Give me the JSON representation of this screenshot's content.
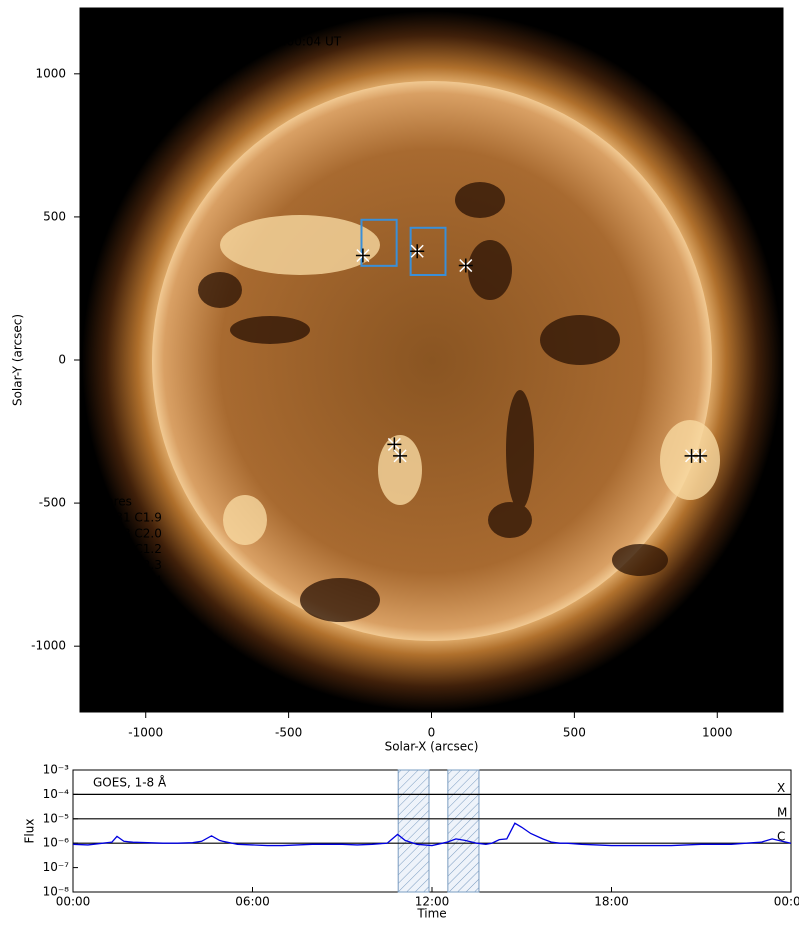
{
  "chart_data": [
    {
      "type": "scatter",
      "title": "AIA 0193, 23-Dec-2022, 12:00:04 UT",
      "xlabel": "Solar-X (arcsec)",
      "ylabel": "Solar-Y (arcsec)",
      "xlim": [
        -1230,
        1230
      ],
      "ylim": [
        -1230,
        1230
      ],
      "xticks": [
        -1000,
        -500,
        0,
        500,
        1000
      ],
      "yticks": [
        -1000,
        -500,
        0,
        500,
        1000
      ],
      "x": [
        -240,
        -50,
        120,
        -130,
        -110,
        910,
        940
      ],
      "y": [
        365,
        380,
        330,
        -295,
        -335,
        -335,
        -335
      ],
      "boxes": [
        {
          "x": [
            -245,
            -122
          ],
          "y": [
            329,
            490
          ]
        },
        {
          "x": [
            -73,
            49
          ],
          "y": [
            297,
            462
          ]
        }
      ],
      "box_color": "#3a8fd8",
      "legend_title": "Flares",
      "flares": [
        "01:31 C1.9",
        "04:38 C2.0",
        "04:58 C1.2",
        "10:51 C2.3",
        "14:15 C1.4",
        "14:46 C6.6",
        "16:17 C1.0",
        "18:56 C1.0",
        "23:22 C1.5"
      ]
    },
    {
      "type": "line",
      "xlabel": "Time",
      "ylabel": "Flux",
      "log_y": true,
      "xlim": [
        0,
        24
      ],
      "ylim": [
        1e-08,
        0.001
      ],
      "xticks": [
        {
          "value": 0,
          "label": "00:00"
        },
        {
          "value": 6,
          "label": "06:00"
        },
        {
          "value": 12,
          "label": "12:00"
        },
        {
          "value": 18,
          "label": "18:00"
        },
        {
          "value": 24,
          "label": "00:00"
        }
      ],
      "yticks": [
        {
          "value": 1e-08,
          "label": "10⁻⁸"
        },
        {
          "value": 1e-07,
          "label": "10⁻⁷"
        },
        {
          "value": 1e-06,
          "label": "10⁻⁶"
        },
        {
          "value": 1e-05,
          "label": "10⁻⁵"
        },
        {
          "value": 0.0001,
          "label": "10⁻⁴"
        },
        {
          "value": 0.001,
          "label": "10⁻³"
        }
      ],
      "class_levels": [
        {
          "value": 0.0001,
          "label": "X"
        },
        {
          "value": 1e-05,
          "label": "M"
        },
        {
          "value": 1e-06,
          "label": "C"
        }
      ],
      "shaded": [
        [
          10.87,
          11.9
        ],
        [
          12.53,
          13.57
        ]
      ],
      "x": [
        0,
        0.5,
        1.0,
        1.3,
        1.47,
        1.7,
        2.0,
        2.5,
        3.0,
        3.5,
        4.0,
        4.3,
        4.63,
        4.9,
        5.0,
        5.5,
        6.0,
        6.5,
        7.0,
        7.5,
        8.0,
        8.5,
        9.0,
        9.5,
        10.0,
        10.5,
        10.85,
        11.1,
        11.5,
        12.0,
        12.5,
        12.8,
        13.1,
        13.5,
        13.8,
        14.0,
        14.25,
        14.5,
        14.77,
        15.0,
        15.3,
        15.7,
        16.0,
        16.28,
        16.5,
        17.0,
        17.5,
        18.0,
        18.5,
        19.0,
        19.5,
        20.0,
        20.5,
        21.0,
        21.5,
        22.0,
        22.5,
        23.0,
        23.37,
        23.7,
        24.0
      ],
      "series": [
        {
          "name": "GOES, 1-8 Å",
          "color": "#0000e0",
          "values": [
            9e-07,
            8.5e-07,
            1e-06,
            1.1e-06,
            1.9e-06,
            1.2e-06,
            1.1e-06,
            1.05e-06,
            1e-06,
            1e-06,
            1.05e-06,
            1.2e-06,
            2e-06,
            1.3e-06,
            1.2e-06,
            9e-07,
            8.5e-07,
            8e-07,
            8e-07,
            8.5e-07,
            9e-07,
            9e-07,
            9e-07,
            8.5e-07,
            9e-07,
            1e-06,
            2.3e-06,
            1.3e-06,
            9e-07,
            8e-07,
            1.1e-06,
            1.5e-06,
            1.3e-06,
            1e-06,
            9e-07,
            1e-06,
            1.4e-06,
            1.5e-06,
            6.6e-06,
            4.5e-06,
            2.5e-06,
            1.5e-06,
            1.1e-06,
            1e-06,
            1e-06,
            9e-07,
            8.5e-07,
            8e-07,
            8e-07,
            8e-07,
            8e-07,
            8e-07,
            8.5e-07,
            9e-07,
            9e-07,
            9e-07,
            1e-06,
            1.1e-06,
            1.5e-06,
            1.2e-06,
            1e-06
          ]
        }
      ]
    }
  ]
}
